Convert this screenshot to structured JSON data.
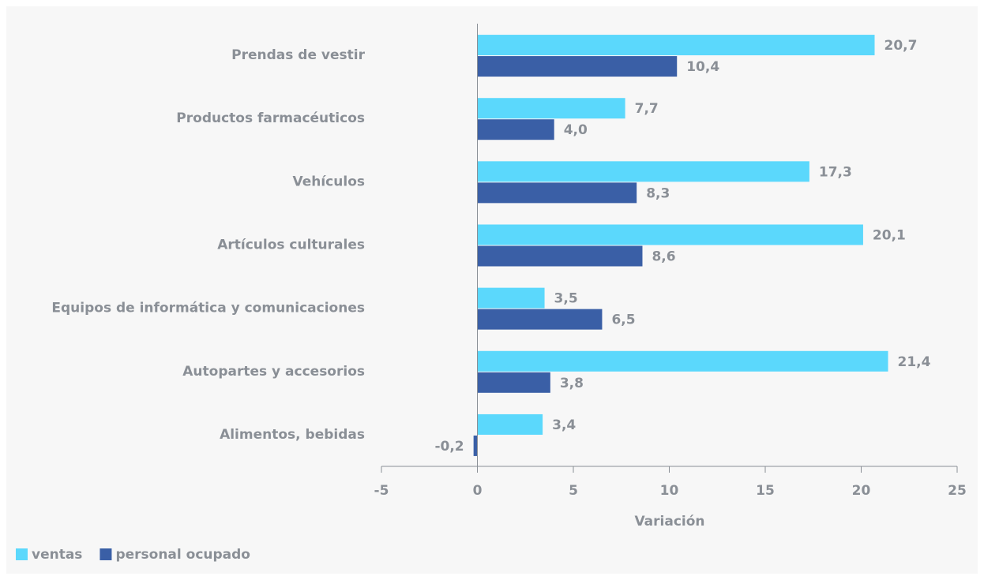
{
  "chart_data": {
    "type": "hbar",
    "categories": [
      "Prendas de vestir",
      "Productos farmacéuticos",
      "Vehículos",
      "Artículos culturales",
      "Equipos de informática y comunicaciones",
      "Autopartes y accesorios",
      "Alimentos, bebidas"
    ],
    "series": [
      {
        "name": "ventas",
        "color": "#5bd8fc",
        "values": [
          20.7,
          7.7,
          17.3,
          20.1,
          3.5,
          21.4,
          3.4
        ],
        "value_labels": [
          "20,7",
          "7,7",
          "17,3",
          "20,1",
          "3,5",
          "21,4",
          "3,4"
        ]
      },
      {
        "name": "personal ocupado",
        "color": "#3a5fa6",
        "values": [
          10.4,
          4.0,
          8.3,
          8.6,
          6.5,
          3.8,
          -0.2
        ],
        "value_labels": [
          "10,4",
          "4,0",
          "8,3",
          "8,6",
          "6,5",
          "3,8",
          "-0,2"
        ]
      }
    ],
    "xlabel": "Variación",
    "xlim": [
      -5,
      25
    ],
    "xticks": [
      -5,
      0,
      5,
      10,
      15,
      20,
      25
    ],
    "legend": "bottom-left"
  }
}
